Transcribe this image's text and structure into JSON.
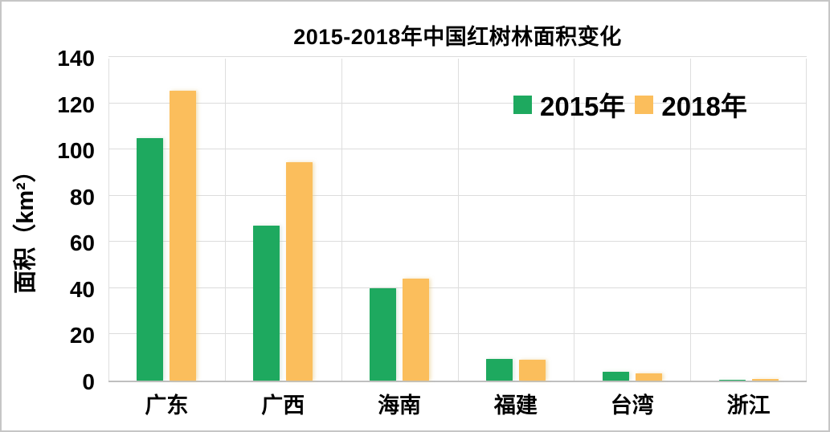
{
  "chart_data": {
    "type": "bar",
    "title": "2015-2018年中国红树林面积变化",
    "xlabel": "",
    "ylabel": "面积（km²）",
    "categories": [
      "广东",
      "广西",
      "海南",
      "福建",
      "台湾",
      "浙江"
    ],
    "series": [
      {
        "name": "2015年",
        "color": "#1EA95F",
        "values": [
          105,
          67,
          40,
          9.5,
          3.7,
          0.2
        ]
      },
      {
        "name": "2018年",
        "color": "#FBBE5C",
        "values": [
          125.5,
          94.5,
          44,
          9,
          3,
          0.7
        ]
      }
    ],
    "ylim": [
      0,
      140
    ],
    "yticks": [
      0,
      20,
      40,
      60,
      80,
      100,
      120,
      140
    ],
    "grid": true,
    "legend_position": "top-right-inside"
  },
  "colors": {
    "background": "#FFFFFF",
    "border": "#C6C6C6",
    "gridline": "#DCDCDC",
    "axis_line": "#BFBFBF",
    "text": "#000000"
  }
}
